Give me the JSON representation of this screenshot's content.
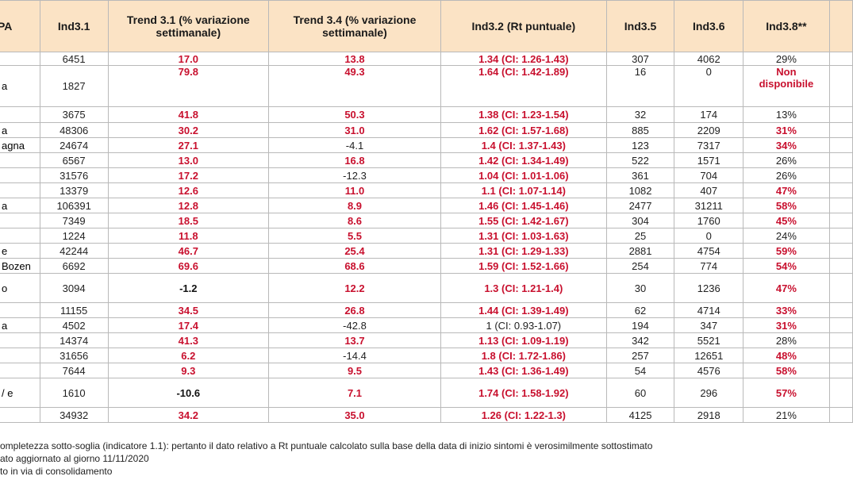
{
  "headers": {
    "region": "PA",
    "ind31": "Ind3.1",
    "trend31": "Trend 3.1 (% variazione settimanale)",
    "trend34": "Trend 3.4 (% variazione settimanale)",
    "ind32": "Ind3.2 (Rt puntuale)",
    "ind35": "Ind3.5",
    "ind36": "Ind3.6",
    "ind38": "Ind3.8**"
  },
  "rows": [
    {
      "region": "",
      "ind31": "6451",
      "t31": "17.0",
      "t34": "13.8",
      "rt": "1.34 (CI: 1.26-1.43)",
      "i35": "307",
      "i36": "4062",
      "i38": "29%"
    },
    {
      "region": "a",
      "ind31": "1827",
      "t31": "79.8",
      "t34": "49.3",
      "rt": "1.64 (CI: 1.42-1.89)",
      "i35": "16",
      "i36": "0",
      "i38": "Non disponibile"
    },
    {
      "region": "",
      "ind31": "3675",
      "t31": "41.8",
      "t34": "50.3",
      "rt": "1.38 (CI: 1.23-1.54)",
      "i35": "32",
      "i36": "174",
      "i38": "13%"
    },
    {
      "region": "a",
      "ind31": "48306",
      "t31": "30.2",
      "t34": "31.0",
      "rt": "1.62 (CI: 1.57-1.68)",
      "i35": "885",
      "i36": "2209",
      "i38": "31%"
    },
    {
      "region": "agna",
      "ind31": "24674",
      "t31": "27.1",
      "t34": "-4.1",
      "rt": "1.4 (CI: 1.37-1.43)",
      "i35": "123",
      "i36": "7317",
      "i38": "34%"
    },
    {
      "region": "",
      "ind31": "6567",
      "t31": "13.0",
      "t34": "16.8",
      "rt": "1.42 (CI: 1.34-1.49)",
      "i35": "522",
      "i36": "1571",
      "i38": "26%"
    },
    {
      "region": "",
      "ind31": "31576",
      "t31": "17.2",
      "t34": "-12.3",
      "rt": "1.04 (CI: 1.01-1.06)",
      "i35": "361",
      "i36": "704",
      "i38": "26%"
    },
    {
      "region": "",
      "ind31": "13379",
      "t31": "12.6",
      "t34": "11.0",
      "rt": "1.1 (CI: 1.07-1.14)",
      "i35": "1082",
      "i36": "407",
      "i38": "47%"
    },
    {
      "region": "a",
      "ind31": "106391",
      "t31": "12.8",
      "t34": "8.9",
      "rt": "1.46 (CI: 1.45-1.46)",
      "i35": "2477",
      "i36": "31211",
      "i38": "58%"
    },
    {
      "region": "",
      "ind31": "7349",
      "t31": "18.5",
      "t34": "8.6",
      "rt": "1.55 (CI: 1.42-1.67)",
      "i35": "304",
      "i36": "1760",
      "i38": "45%"
    },
    {
      "region": "",
      "ind31": "1224",
      "t31": "11.8",
      "t34": "5.5",
      "rt": "1.31 (CI: 1.03-1.63)",
      "i35": "25",
      "i36": "0",
      "i38": "24%"
    },
    {
      "region": "e",
      "ind31": "42244",
      "t31": "46.7",
      "t34": "25.4",
      "rt": "1.31 (CI: 1.29-1.33)",
      "i35": "2881",
      "i36": "4754",
      "i38": "59%"
    },
    {
      "region": "Bozen",
      "ind31": "6692",
      "t31": "69.6",
      "t34": "68.6",
      "rt": "1.59 (CI: 1.52-1.66)",
      "i35": "254",
      "i36": "774",
      "i38": "54%"
    },
    {
      "region": "o",
      "ind31": "3094",
      "t31": "-1.2",
      "t34": "12.2",
      "rt": "1.3 (CI: 1.21-1.4)",
      "i35": "30",
      "i36": "1236",
      "i38": "47%"
    },
    {
      "region": "",
      "ind31": "11155",
      "t31": "34.5",
      "t34": "26.8",
      "rt": "1.44 (CI: 1.39-1.49)",
      "i35": "62",
      "i36": "4714",
      "i38": "33%"
    },
    {
      "region": "a",
      "ind31": "4502",
      "t31": "17.4",
      "t34": "-42.8",
      "rt": "1 (CI: 0.93-1.07)",
      "i35": "194",
      "i36": "347",
      "i38": "31%"
    },
    {
      "region": "",
      "ind31": "14374",
      "t31": "41.3",
      "t34": "13.7",
      "rt": "1.13 (CI: 1.09-1.19)",
      "i35": "342",
      "i36": "5521",
      "i38": "28%"
    },
    {
      "region": "",
      "ind31": "31656",
      "t31": "6.2",
      "t34": "-14.4",
      "rt": "1.8 (CI: 1.72-1.86)",
      "i35": "257",
      "i36": "12651",
      "i38": "48%"
    },
    {
      "region": "",
      "ind31": "7644",
      "t31": "9.3",
      "t34": "9.5",
      "rt": "1.43 (CI: 1.36-1.49)",
      "i35": "54",
      "i36": "4576",
      "i38": "58%"
    },
    {
      "region": "/ e",
      "ind31": "1610",
      "t31": "-10.6",
      "t34": "7.1",
      "rt": "1.74 (CI: 1.58-1.92)",
      "i35": "60",
      "i36": "296",
      "i38": "57%"
    },
    {
      "region": "",
      "ind31": "34932",
      "t31": "34.2",
      "t34": "35.0",
      "rt": "1.26 (CI: 1.22-1.3)",
      "i35": "4125",
      "i36": "2918",
      "i38": "21%"
    }
  ],
  "notes": [
    "ompletezza sotto-soglia (indicatore 1.1): pertanto il dato relativo a Rt puntuale calcolato sulla base della data di inizio sintomi è verosimilmente sottostimato",
    "ato aggiornato al giorno 11/11/2020",
    "to in via di consolidamento"
  ],
  "colors": {
    "header_bg": "#fbe3c5",
    "highlight": "#c8102e",
    "border": "#b9b9b9"
  }
}
